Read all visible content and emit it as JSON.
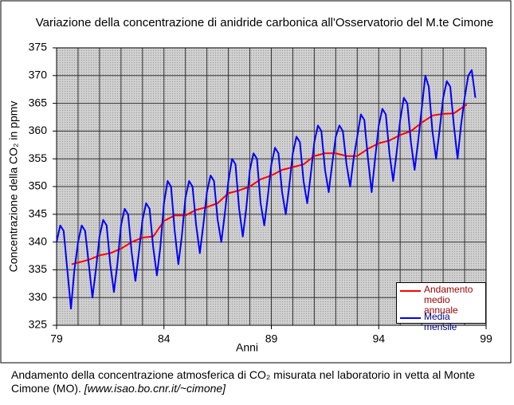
{
  "chart_data": {
    "type": "line",
    "title": "Variazione della concentrazione di anidride carbonica all'Osservatorio del M.te Cimone",
    "x_label": "Anni",
    "y_label": "Concentrazione della CO₂ in ppmv",
    "xlim": [
      79,
      99
    ],
    "xticks": [
      79,
      84,
      89,
      94,
      99
    ],
    "xgrid": [
      79,
      80,
      81,
      82,
      83,
      84,
      85,
      86,
      87,
      88,
      89,
      90,
      91,
      92,
      93,
      94,
      95,
      96,
      97,
      98,
      99
    ],
    "ylim": [
      325,
      375
    ],
    "yticks": [
      325,
      330,
      335,
      340,
      345,
      350,
      355,
      360,
      365,
      370,
      375
    ],
    "grid": true,
    "legend": "lower right",
    "series": [
      {
        "name": "Andamento medio annuale",
        "color": "#ff0000",
        "x": [
          79.7,
          80.5,
          81,
          81.5,
          82,
          82.5,
          83,
          83.5,
          84,
          84.5,
          85,
          85.5,
          86,
          86.5,
          87,
          87.5,
          88,
          88.5,
          89,
          89.5,
          90,
          90.5,
          91,
          91.5,
          92,
          92.5,
          93,
          93.5,
          94,
          94.5,
          95,
          95.5,
          96,
          96.5,
          97,
          97.5,
          98.1
        ],
        "values": [
          336,
          336.8,
          337.6,
          338,
          338.8,
          340,
          340.8,
          341,
          343.8,
          344.8,
          344.8,
          345.8,
          346.3,
          347,
          348.8,
          349.3,
          350,
          351.3,
          352,
          353,
          353.5,
          354,
          355.5,
          356,
          356,
          355.5,
          355.5,
          356.8,
          357.8,
          358.3,
          359.3,
          360,
          361.5,
          362.8,
          363.1,
          363.2,
          364.8
        ]
      },
      {
        "name": "Media mensile",
        "color": "#0000ff",
        "x": [
          79,
          79.17,
          79.33,
          79.5,
          79.67,
          79.83,
          80,
          80.17,
          80.33,
          80.5,
          80.67,
          80.83,
          81,
          81.17,
          81.33,
          81.5,
          81.67,
          81.83,
          82,
          82.17,
          82.33,
          82.5,
          82.67,
          82.83,
          83,
          83.17,
          83.33,
          83.5,
          83.67,
          83.83,
          84,
          84.17,
          84.33,
          84.5,
          84.67,
          84.83,
          85,
          85.17,
          85.33,
          85.5,
          85.67,
          85.83,
          86,
          86.17,
          86.33,
          86.5,
          86.67,
          86.83,
          87,
          87.17,
          87.33,
          87.5,
          87.67,
          87.83,
          88,
          88.17,
          88.33,
          88.5,
          88.67,
          88.83,
          89,
          89.17,
          89.33,
          89.5,
          89.67,
          89.83,
          90,
          90.17,
          90.33,
          90.5,
          90.67,
          90.83,
          91,
          91.17,
          91.33,
          91.5,
          91.67,
          91.83,
          92,
          92.17,
          92.33,
          92.5,
          92.67,
          92.83,
          93,
          93.17,
          93.33,
          93.5,
          93.67,
          93.83,
          94,
          94.17,
          94.33,
          94.5,
          94.67,
          94.83,
          95,
          95.17,
          95.33,
          95.5,
          95.67,
          95.83,
          96,
          96.17,
          96.33,
          96.5,
          96.67,
          96.83,
          97,
          97.17,
          97.33,
          97.5,
          97.67,
          97.83,
          98,
          98.17,
          98.33,
          98.5
        ],
        "values": [
          340,
          343,
          342,
          335,
          328,
          335,
          340,
          343,
          342,
          336,
          330,
          335,
          341,
          344,
          343,
          336,
          331,
          336,
          343,
          346,
          345,
          338,
          333,
          338,
          344,
          347,
          346,
          339,
          334,
          339,
          347,
          351,
          350,
          342,
          336,
          341,
          348,
          351,
          350,
          343,
          338,
          343,
          349,
          352,
          351,
          344,
          340,
          345,
          351,
          355,
          354,
          346,
          341,
          346,
          353,
          356,
          355,
          347,
          343,
          348,
          354,
          357,
          356,
          349,
          345,
          350,
          356,
          359,
          358,
          351,
          347,
          352,
          358,
          361,
          360,
          353,
          349,
          354,
          359,
          361,
          360,
          354,
          350,
          355,
          359,
          363,
          362,
          355,
          349,
          355,
          361,
          364,
          363,
          356,
          351,
          356,
          362,
          366,
          365,
          358,
          353,
          358,
          364,
          370,
          368,
          360,
          355,
          360,
          366,
          369,
          368,
          361,
          355,
          361,
          366,
          370,
          371,
          366
        ]
      }
    ],
    "caption": "Andamento della concentrazione atmosferica di CO₂ misurata nel laboratorio in vetta al Monte Cimone (MO).",
    "caption_source": "[www.isao.bo.cnr.it/~cimone]"
  }
}
